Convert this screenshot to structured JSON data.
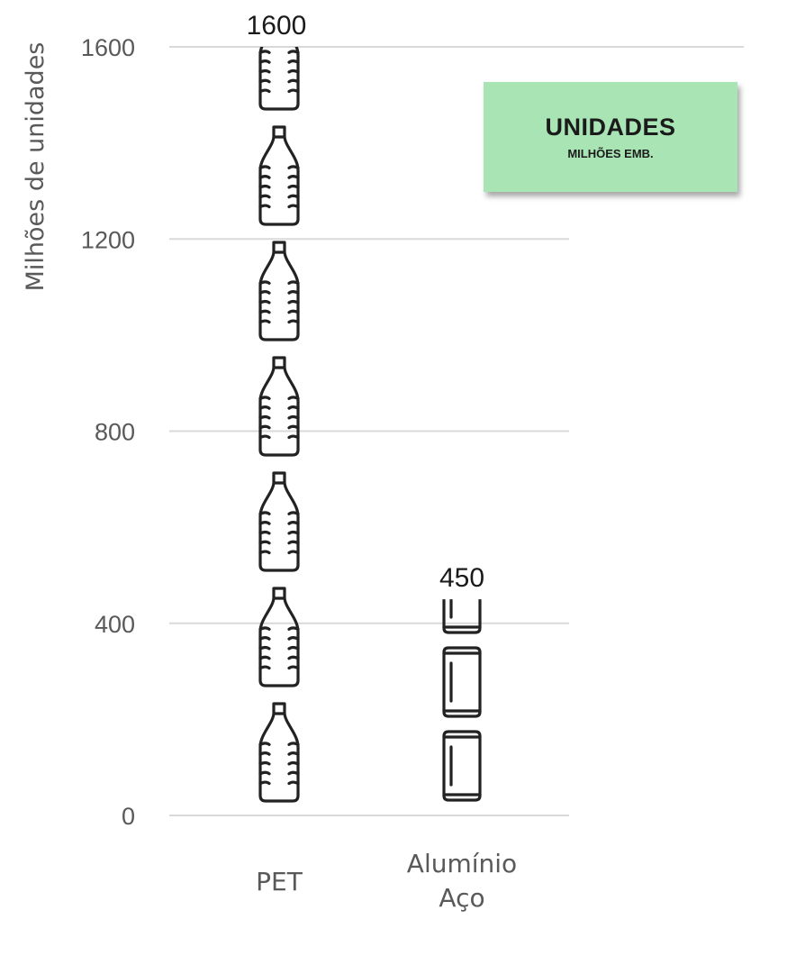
{
  "chart_data": {
    "type": "bar",
    "ylabel": "Milhões de unidades",
    "ylim": [
      0,
      1600
    ],
    "yticks": [
      0,
      400,
      800,
      1200,
      1600
    ],
    "grid": true,
    "categories": [
      {
        "lines": [
          "PET"
        ],
        "pictogram": "plastic-bottle"
      },
      {
        "lines": [
          "Alumínio",
          "Aço"
        ],
        "pictogram": "metal-can"
      }
    ],
    "values": [
      1600,
      450
    ],
    "data_labels": [
      "1600",
      "450"
    ],
    "bar_color": "#222222"
  },
  "badge": {
    "title": "UNIDADES",
    "subtitle": "MILHÕES EMB.",
    "color": "#a9e4b5"
  }
}
